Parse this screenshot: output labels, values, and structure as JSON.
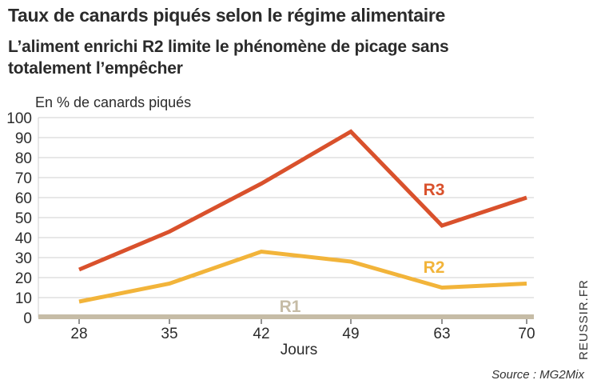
{
  "chart_data": {
    "type": "line",
    "title": "Taux de canards piqués selon le régime alimentaire",
    "subtitle": "L’aliment enrichi R2 limite le phénomène de picage sans totalement l’empêcher",
    "ylabel": "En % de canards piqués",
    "xlabel": "Jours",
    "categories": [
      "28",
      "35",
      "42",
      "49",
      "63",
      "70"
    ],
    "ylim": [
      0,
      100
    ],
    "yticks": [
      0,
      10,
      20,
      30,
      40,
      50,
      60,
      70,
      80,
      90,
      100
    ],
    "grid": true,
    "series": [
      {
        "name": "R3",
        "color": "#d9512c",
        "values": [
          24,
          43,
          67,
          93,
          46,
          60
        ]
      },
      {
        "name": "R2",
        "color": "#f2b43a",
        "values": [
          8,
          17,
          33,
          28,
          15,
          17
        ]
      },
      {
        "name": "R1",
        "color": "#c6bca6",
        "values": [
          0,
          0,
          0,
          0,
          0,
          0
        ]
      }
    ]
  },
  "source": "Source : MG2Mix",
  "brand": "REUSSIR.FR"
}
